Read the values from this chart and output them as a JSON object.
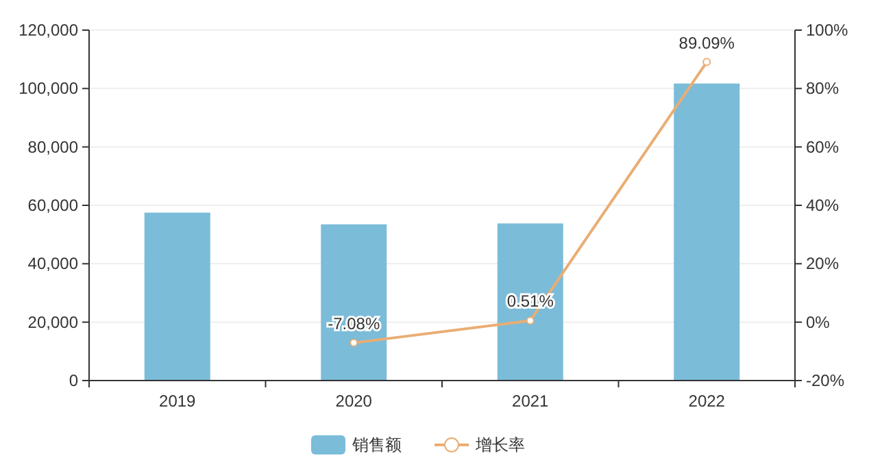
{
  "chart_data": {
    "type": "bar",
    "categories": [
      "2019",
      "2020",
      "2021",
      "2022"
    ],
    "series": [
      {
        "name": "销售额",
        "color": "#7bbcd9",
        "values": [
          57500,
          53500,
          53800,
          101700
        ]
      },
      {
        "name": "增长率",
        "color": "#eaad73",
        "type": "line",
        "axis": "y2",
        "marker": "circle",
        "values": [
          null,
          -7.08,
          0.51,
          89.09
        ],
        "value_labels": [
          null,
          "-7.08%",
          "0.51%",
          "89.09%"
        ]
      }
    ],
    "ylim": [
      0,
      120000
    ],
    "yticks": [
      {
        "value": 0,
        "label": "0"
      },
      {
        "value": 20000,
        "label": "20,000"
      },
      {
        "value": 40000,
        "label": "40,000"
      },
      {
        "value": 60000,
        "label": "60,000"
      },
      {
        "value": 80000,
        "label": "80,000"
      },
      {
        "value": 100000,
        "label": "100,000"
      },
      {
        "value": 120000,
        "label": "120,000"
      }
    ],
    "y2lim": [
      -20,
      100
    ],
    "y2ticks": [
      {
        "value": -20,
        "label": "-20%"
      },
      {
        "value": 0,
        "label": "0%"
      },
      {
        "value": 20,
        "label": "20%"
      },
      {
        "value": 40,
        "label": "40%"
      },
      {
        "value": 60,
        "label": "60%"
      },
      {
        "value": 80,
        "label": "80%"
      },
      {
        "value": 100,
        "label": "100%"
      }
    ],
    "grid": "y",
    "legend": "bottom"
  }
}
